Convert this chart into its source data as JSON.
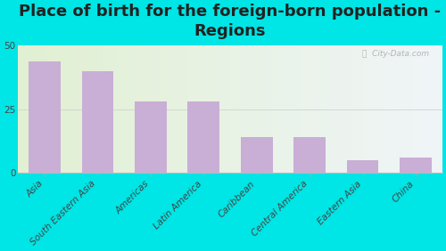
{
  "title": "Place of birth for the foreign-born population -\nRegions",
  "categories": [
    "Asia",
    "South Eastern Asia",
    "Americas",
    "Latin America",
    "Caribbean",
    "Central America",
    "Eastern Asia",
    "China"
  ],
  "values": [
    44,
    40,
    28,
    28,
    14,
    14,
    5,
    6
  ],
  "bar_color": "#c9aed6",
  "background_outer": "#00e5e5",
  "ylim": [
    0,
    50
  ],
  "yticks": [
    0,
    25,
    50
  ],
  "watermark": "ⓘ  City-Data.com",
  "title_fontsize": 13,
  "tick_fontsize": 7.5
}
